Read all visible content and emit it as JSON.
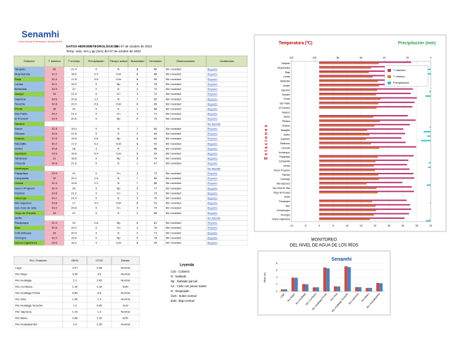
{
  "header": {
    "logo": "Senamhi",
    "logo_sub": "Servicio Nacional de Meteorología e Hidrología del Perú",
    "title": "DATOS HIDROMETEOROLÓGICOS",
    "date": "Del 07 de octubre de 2022",
    "subtitle": "Temp. máx, mín y pp (mm) del 07 de octubre de 2022"
  },
  "table": {
    "columns": [
      "Estación",
      "T máxima",
      "T mínima",
      "Precipitación",
      "Tiempo actual",
      "Nubosidad",
      "Humedad",
      "Observaciones",
      "Incidencias"
    ],
    "rows": [
      [
        "N",
        8,
        80,
        "Sin novedad",
        "Reportó"
      ],
      [
        "Cub",
        8,
        88,
        "Sin novedad",
        "Reportó"
      ],
      [
        "Cub",
        8,
        90,
        "Sin novedad",
        "Reportó"
      ],
      [
        "Np",
        6,
        78,
        "Sin novedad",
        "Reportó"
      ],
      [
        "D",
        2,
        70,
        "Sin novedad",
        "Reportó"
      ],
      [
        "Cn",
        3,
        72,
        "Sin novedad",
        "Reportó"
      ],
      [
        "N",
        7,
        82,
        "Sin novedad",
        "Reportó"
      ],
      [
        "Cub",
        8,
        89,
        "Sin novedad",
        "Reportó"
      ],
      [
        "D",
        1,
        68,
        "Sin novedad",
        "Reportó"
      ],
      [
        "Cn",
        3,
        71,
        "Sin novedad",
        "Reportó"
      ],
      [
        "Np",
        5,
        75,
        "Sin novedad",
        "Reportó"
      ],
      [
        null,
        null,
        null,
        null,
        "No reportó"
      ],
      [
        "N",
        7,
        80,
        "Sin novedad",
        "Reportó"
      ],
      [
        "D",
        2,
        69,
        "Sin novedad",
        "Reportó"
      ],
      [
        "Np",
        6,
        84,
        "Sin novedad",
        "Reportó"
      ],
      [
        "Cub",
        8,
        92,
        "Sin novedad",
        "Reportó"
      ],
      [
        "N",
        7,
        86,
        "Sin novedad",
        "Reportó"
      ],
      [
        "Cub",
        8,
        93,
        "Sin novedad",
        "Reportó"
      ],
      [
        "Np",
        5,
        79,
        "Sin novedad",
        "Reportó"
      ],
      [
        "D",
        1,
        67,
        "Sin novedad",
        "Reportó"
      ],
      [
        null,
        null,
        null,
        null,
        "No reportó"
      ],
      [
        "Cn",
        3,
        72,
        "Sin novedad",
        "Reportó"
      ],
      [
        "N",
        7,
        83,
        "Sin novedad",
        "Reportó"
      ],
      [
        "N",
        7,
        85,
        "Sin novedad",
        "Reportó"
      ],
      [
        "Np",
        5,
        77,
        "Sin novedad",
        "Reportó"
      ],
      [
        "Cn",
        3,
        73,
        "Sin novedad",
        "Reportó"
      ],
      [
        "D",
        2,
        70,
        "Sin novedad",
        "Reportó"
      ],
      [
        "Cub",
        8,
        91,
        "Sin novedad",
        "Reportó"
      ],
      [
        "Cn",
        4,
        74,
        "Sin novedad",
        "Reportó"
      ],
      [
        "D",
        2,
        68,
        "Sin novedad",
        "Reportó"
      ],
      [
        null,
        null,
        null,
        null,
        "No reportó"
      ],
      [
        "Np",
        6,
        81,
        "Sin novedad",
        "Reportó"
      ],
      [
        "Cn",
        4,
        76,
        "Sin novedad",
        "Reportó"
      ],
      [
        "D",
        2,
        71,
        "Sin novedad",
        "Reportó"
      ],
      [
        "Np",
        5,
        78,
        "Sin novedad",
        "Reportó"
      ],
      [
        "Cub",
        8,
        90,
        "Sin novedad",
        "Reportó"
      ]
    ]
  },
  "legend": {
    "title": "Leyenda",
    "items": [
      "Cub : Cubierto",
      "N : Nublado",
      "Np : Nublado parcial",
      "Cn : Cielo con pocas nubes",
      "D : Despejado",
      "SLN : Sobre normal",
      "BJN : Bajo normal"
    ]
  },
  "rivers": {
    "columns": [
      "Río / Estación",
      "Estado"
    ],
    "status": [
      "Normal",
      "Normal",
      "Normal",
      "BJN",
      "Normal",
      "Normal",
      "SLN",
      "Normal",
      "BJN",
      "Normal"
    ]
  },
  "chart_data": [
    {
      "type": "hbar",
      "x_label": "Temperatura (ºC)",
      "x2_label": "Precipitación (mm)",
      "y_label": "Estaciones",
      "categories": [
        "Tarapoto",
        "Moyobamba",
        "Rioja",
        "Lamas",
        "Bellavista",
        "Juanjuí",
        "Saposoa",
        "Tocache",
        "Picota",
        "San Pablo",
        "El Porvenir",
        "Navarro",
        "Sauce",
        "Pilluana",
        "Shanao",
        "Naranjillo",
        "Soritor",
        "Jepelacio",
        "Tabalosos",
        "Chazuta",
        "Huimbayoc",
        "Papaplaya",
        "Campanilla",
        "Uchiza",
        "Nuevo Progreso",
        "Pachiza",
        "Huicungo",
        "Alto Saposoa",
        "San José de Sisa",
        "Tingo de Ponasa",
        "Jerillo",
        "Pacayzapa",
        "Alao",
        "Cuñumbuque",
        "Yorongos",
        "Nueva Cajamarca"
      ],
      "series": [
        {
          "name": "T máxima",
          "color": "#b8306e",
          "values": [
            33.0,
            31.2,
            30.4,
            32.1,
            34.5,
            34.0,
            33.6,
            32.8,
            35.0,
            34.2,
            33.4,
            null,
            31.8,
            34.6,
            32.5,
            30.2,
            30.8,
            29.5,
            31.0,
            34.8,
            null,
            33.9,
            32.0,
            31.5,
            32.4,
            33.8,
            34.1,
            29.8,
            33.2,
            34.0,
            null,
            31.4,
            32.6,
            33.0,
            32.2,
            30.6
          ]
        },
        {
          "name": "T mínima",
          "color": "#d47a2c",
          "values": [
            21.4,
            18.6,
            17.8,
            19.2,
            21.0,
            21.5,
            20.8,
            20.4,
            22.0,
            21.2,
            20.6,
            null,
            19.4,
            21.8,
            19.8,
            17.2,
            18.0,
            16.8,
            18.6,
            21.6,
            null,
            21.0,
            20.2,
            19.6,
            20.0,
            21.2,
            21.4,
            17.0,
            20.6,
            21.0,
            null,
            19.0,
            20.2,
            20.4,
            19.6,
            18.2
          ]
        },
        {
          "name": "Precipitación",
          "color": "#38bcd0",
          "axis": "x2",
          "values": [
            0,
            2.4,
            5.8,
            0,
            0,
            0,
            1.2,
            4.6,
            0,
            0,
            0,
            null,
            0,
            0,
            0.8,
            6.2,
            3.0,
            8.4,
            0,
            0,
            null,
            0,
            1.6,
            2.2,
            0,
            0,
            0,
            3.4,
            0,
            0,
            null,
            0.6,
            0,
            0,
            0,
            4.0
          ]
        }
      ],
      "xlim": [
        -10,
        40
      ],
      "xticks": [
        -10,
        -5,
        0,
        5,
        10,
        15,
        20,
        25,
        30,
        35,
        40
      ],
      "x2lim": [
        120,
        0
      ],
      "x2ticks": [
        120,
        100,
        80,
        60,
        40,
        20,
        0
      ],
      "grid": true,
      "legend": "top-right"
    },
    {
      "type": "bar",
      "title": "MONITOREO",
      "subtitle": "DEL NIVEL DE AGUA DE LOS RÍOS",
      "y_label": "Nivel (m)",
      "categories": [
        "Lago",
        "Río Mayo",
        "Río Huallaga",
        "Río Cumbaza",
        "Río Huallaga Picota",
        "Río Sisa",
        "Río Huallaga Tocache",
        "Río Saposoa",
        "Río Biavo",
        "Río Huayabamba"
      ],
      "series": [
        {
          "name": "06/10",
          "color": "#c0504d",
          "values": [
            0.57,
            3.95,
            2.1,
            1.16,
            6.85,
            1.45,
            7.2,
            1.23,
            0.98,
            2.4
          ]
        },
        {
          "name": "07/10",
          "color": "#4f81bd",
          "values": [
            0.58,
            3.9,
            2.05,
            1.18,
            6.6,
            1.4,
            6.95,
            1.2,
            1.02,
            2.35
          ]
        }
      ],
      "ylim": [
        0,
        8
      ],
      "yticks": [
        0,
        2,
        4,
        6,
        8
      ]
    }
  ]
}
